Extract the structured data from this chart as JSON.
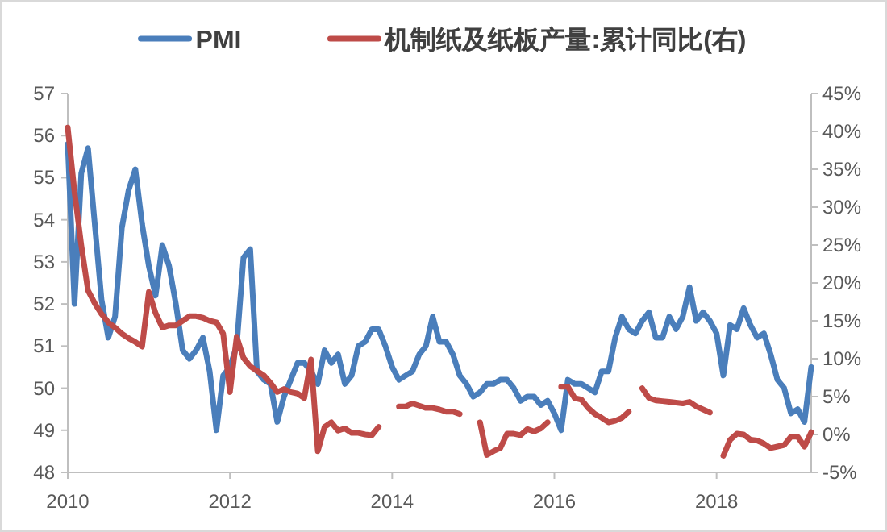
{
  "chart_data": {
    "type": "line",
    "legend": "top",
    "marker": "none",
    "line_style": "solid",
    "grid": false,
    "x": [
      "2010-01",
      "2010-02",
      "2010-03",
      "2010-04",
      "2010-05",
      "2010-06",
      "2010-07",
      "2010-08",
      "2010-09",
      "2010-10",
      "2010-11",
      "2010-12",
      "2011-01",
      "2011-02",
      "2011-03",
      "2011-04",
      "2011-05",
      "2011-06",
      "2011-07",
      "2011-08",
      "2011-09",
      "2011-10",
      "2011-11",
      "2011-12",
      "2012-01",
      "2012-02",
      "2012-03",
      "2012-04",
      "2012-05",
      "2012-06",
      "2012-07",
      "2012-08",
      "2012-09",
      "2012-10",
      "2012-11",
      "2012-12",
      "2013-01",
      "2013-02",
      "2013-03",
      "2013-04",
      "2013-05",
      "2013-06",
      "2013-07",
      "2013-08",
      "2013-09",
      "2013-10",
      "2013-11",
      "2013-12",
      "2014-01",
      "2014-02",
      "2014-03",
      "2014-04",
      "2014-05",
      "2014-06",
      "2014-07",
      "2014-08",
      "2014-09",
      "2014-10",
      "2014-11",
      "2014-12",
      "2015-01",
      "2015-02",
      "2015-03",
      "2015-04",
      "2015-05",
      "2015-06",
      "2015-07",
      "2015-08",
      "2015-09",
      "2015-10",
      "2015-11",
      "2015-12",
      "2016-01",
      "2016-02",
      "2016-03",
      "2016-04",
      "2016-05",
      "2016-06",
      "2016-07",
      "2016-08",
      "2016-09",
      "2016-10",
      "2016-11",
      "2016-12",
      "2017-01",
      "2017-02",
      "2017-03",
      "2017-04",
      "2017-05",
      "2017-06",
      "2017-07",
      "2017-08",
      "2017-09",
      "2017-10",
      "2017-11",
      "2017-12",
      "2018-01",
      "2018-02",
      "2018-03",
      "2018-04",
      "2018-05",
      "2018-06",
      "2018-07",
      "2018-08",
      "2018-09",
      "2018-10",
      "2018-11",
      "2018-12",
      "2019-01",
      "2019-02",
      "2019-03"
    ],
    "xlim": [
      "2010-01",
      "2019-03"
    ],
    "xticks": [
      "2010",
      "2012",
      "2014",
      "2016",
      "2018"
    ],
    "ylim": [
      48,
      57
    ],
    "yticks": [
      48,
      49,
      50,
      51,
      52,
      53,
      54,
      55,
      56,
      57
    ],
    "y2lim": [
      -5,
      45
    ],
    "y2ticks": [
      {
        "value": -5,
        "label": "-5%"
      },
      {
        "value": 0,
        "label": "0%"
      },
      {
        "value": 5,
        "label": "5%"
      },
      {
        "value": 10,
        "label": "10%"
      },
      {
        "value": 15,
        "label": "15%"
      },
      {
        "value": 20,
        "label": "20%"
      },
      {
        "value": 25,
        "label": "25%"
      },
      {
        "value": 30,
        "label": "30%"
      },
      {
        "value": 35,
        "label": "35%"
      },
      {
        "value": 40,
        "label": "40%"
      },
      {
        "value": 45,
        "label": "45%"
      }
    ],
    "series": [
      {
        "name": "PMI",
        "color": "#4a7ebb",
        "values": [
          55.8,
          52.0,
          55.1,
          55.7,
          53.9,
          52.1,
          51.2,
          51.7,
          53.8,
          54.7,
          55.2,
          53.9,
          52.9,
          52.2,
          53.4,
          52.9,
          52.0,
          50.9,
          50.7,
          50.9,
          51.2,
          50.4,
          49.0,
          50.3,
          50.5,
          51.0,
          53.1,
          53.3,
          50.4,
          50.2,
          50.1,
          49.2,
          49.8,
          50.2,
          50.6,
          50.6,
          50.4,
          50.1,
          50.9,
          50.6,
          50.8,
          50.1,
          50.3,
          51.0,
          51.1,
          51.4,
          51.4,
          51.0,
          50.5,
          50.2,
          50.3,
          50.4,
          50.8,
          51.0,
          51.7,
          51.1,
          51.1,
          50.8,
          50.3,
          50.1,
          49.8,
          49.9,
          50.1,
          50.1,
          50.2,
          50.2,
          50.0,
          49.7,
          49.8,
          49.8,
          49.6,
          49.7,
          49.4,
          49.0,
          50.2,
          50.1,
          50.1,
          50.0,
          49.9,
          50.4,
          50.4,
          51.2,
          51.7,
          51.4,
          51.3,
          51.6,
          51.8,
          51.2,
          51.2,
          51.7,
          51.4,
          51.7,
          52.4,
          51.6,
          51.8,
          51.6,
          51.3,
          50.3,
          51.5,
          51.4,
          51.9,
          51.5,
          51.2,
          51.3,
          50.8,
          50.2,
          50.0,
          49.4,
          49.5,
          49.2,
          50.5
        ]
      },
      {
        "name": "机制纸及纸板产量:累计同比(右)",
        "color": "#be4b48",
        "axis": "y2",
        "values": [
          40.5,
          32,
          25,
          19,
          17.3,
          15.9,
          14.8,
          14.1,
          13.3,
          12.7,
          12.2,
          11.6,
          18.8,
          16,
          14.1,
          14.4,
          14.4,
          15,
          15.6,
          15.6,
          15.4,
          15,
          14.8,
          13.3,
          5.6,
          12.9,
          10.1,
          9,
          8.4,
          7.8,
          6.8,
          5.6,
          6,
          5.6,
          5.4,
          4.8,
          9.9,
          -2.2,
          1.0,
          1.6,
          0.5,
          0.8,
          0.2,
          0.2,
          0.0,
          -0.1,
          1.0,
          null,
          null,
          3.7,
          3.7,
          4.1,
          3.8,
          3.5,
          3.5,
          3.3,
          3.0,
          3.0,
          2.7,
          null,
          null,
          1.6,
          -2.7,
          -2.2,
          -1.8,
          0.1,
          0.1,
          -0.1,
          0.7,
          0.4,
          0.8,
          1.6,
          null,
          6.3,
          6.3,
          4.8,
          4.6,
          3.5,
          2.7,
          2.2,
          1.6,
          1.8,
          2.2,
          3.0,
          null,
          6.1,
          4.8,
          4.5,
          4.4,
          4.3,
          4.2,
          4.1,
          4.3,
          3.7,
          3.3,
          2.9,
          null,
          -2.8,
          -0.7,
          0.1,
          0.0,
          -0.7,
          -0.8,
          -1.2,
          -1.8,
          -1.6,
          -1.4,
          -0.3,
          -0.3,
          -1.6,
          0.3
        ]
      }
    ]
  }
}
